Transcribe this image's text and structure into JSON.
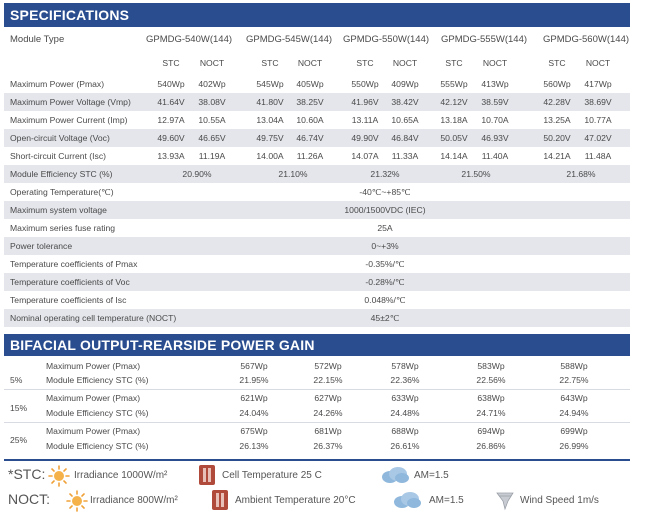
{
  "specs": {
    "title": "SPECIFICATIONS",
    "module_type_label": "Module Type",
    "models": [
      "GPMDG-540W(144)",
      "GPMDG-545W(144)",
      "GPMDG-550W(144)",
      "GPMDG-555W(144)",
      "GPMDG-560W(144)"
    ],
    "stc_label": "STC",
    "noct_label": "NOCT",
    "paired_rows": [
      {
        "label": "Maximum Power (Pmax)",
        "values": [
          "540Wp",
          "402Wp",
          "545Wp",
          "405Wp",
          "550Wp",
          "409Wp",
          "555Wp",
          "413Wp",
          "560Wp",
          "417Wp"
        ]
      },
      {
        "label": "Maximum Power Voltage (Vmp)",
        "values": [
          "41.64V",
          "38.08V",
          "41.80V",
          "38.25V",
          "41.96V",
          "38.42V",
          "42.12V",
          "38.59V",
          "42.28V",
          "38.69V"
        ]
      },
      {
        "label": "Maximum Power Current (Imp)",
        "values": [
          "12.97A",
          "10.55A",
          "13.04A",
          "10.60A",
          "13.11A",
          "10.65A",
          "13.18A",
          "10.70A",
          "13.25A",
          "10.77A"
        ]
      },
      {
        "label": "Open-circuit Voltage (Voc)",
        "values": [
          "49.60V",
          "46.65V",
          "49.75V",
          "46.74V",
          "49.90V",
          "46.84V",
          "50.05V",
          "46.93V",
          "50.20V",
          "47.02V"
        ]
      },
      {
        "label": "Short-circuit Current (Isc)",
        "values": [
          "13.93A",
          "11.19A",
          "14.00A",
          "11.26A",
          "14.07A",
          "11.33A",
          "14.14A",
          "11.40A",
          "14.21A",
          "11.48A"
        ]
      }
    ],
    "efficiency_row": {
      "label": "Module Efficiency STC (%)",
      "values": [
        "20.90%",
        "21.10%",
        "21.32%",
        "21.50%",
        "21.68%"
      ]
    },
    "common_rows": [
      {
        "label": "Operating Temperature(℃)",
        "value": "-40℃~+85℃"
      },
      {
        "label": "Maximum system voltage",
        "value": "1000/1500VDC (IEC)"
      },
      {
        "label": "Maximum series fuse rating",
        "value": "25A"
      },
      {
        "label": "Power tolerance",
        "value": "0~+3%"
      },
      {
        "label": "Temperature coefficients of Pmax",
        "value": "-0.35%/℃"
      },
      {
        "label": "Temperature coefficients of Voc",
        "value": "-0.28%/℃"
      },
      {
        "label": "Temperature coefficients of Isc",
        "value": "0.048%/℃"
      },
      {
        "label": "Nominal operating cell temperature  (NOCT)",
        "value": "45±2℃"
      }
    ]
  },
  "bifacial": {
    "title": "BIFACIAL OUTPUT-REARSIDE POWER GAIN",
    "groups": [
      {
        "gain": "5%",
        "power_label": "Maximum Power (Pmax)",
        "eff_label": "Module Efficiency STC (%)",
        "power": [
          "567Wp",
          "572Wp",
          "578Wp",
          "583Wp",
          "588Wp"
        ],
        "eff": [
          "21.95%",
          "22.15%",
          "22.36%",
          "22.56%",
          "22.75%"
        ]
      },
      {
        "gain": "15%",
        "power_label": "Maximum Power (Pmax)",
        "eff_label": "Module Efficiency STC (%)",
        "power": [
          "621Wp",
          "627Wp",
          "633Wp",
          "638Wp",
          "643Wp"
        ],
        "eff": [
          "24.04%",
          "24.26%",
          "24.48%",
          "24.71%",
          "24.94%"
        ]
      },
      {
        "gain": "25%",
        "power_label": "Maximum Power (Pmax)",
        "eff_label": "Module Efficiency STC (%)",
        "power": [
          "675Wp",
          "681Wp",
          "688Wp",
          "694Wp",
          "699Wp"
        ],
        "eff": [
          "26.13%",
          "26.37%",
          "26.61%",
          "26.86%",
          "26.99%"
        ]
      }
    ]
  },
  "legend": {
    "stc": {
      "prefix": "*STC:",
      "irradiance": "Irradiance 1000W/m²",
      "cell_temp": "Cell Temperature 25 C",
      "am": "AM=1.5"
    },
    "noct": {
      "prefix": "NOCT:",
      "irradiance": "Irradiance 800W/m²",
      "ambient_temp": "Ambient Temperature 20°C",
      "am": "AM=1.5",
      "wind": "Wind Speed 1m/s"
    },
    "colors": {
      "accent": "#2a4d8f",
      "sun": "#f0a23a",
      "thermometer": "#b04a3a",
      "cloud": "#8fb8dc"
    }
  }
}
